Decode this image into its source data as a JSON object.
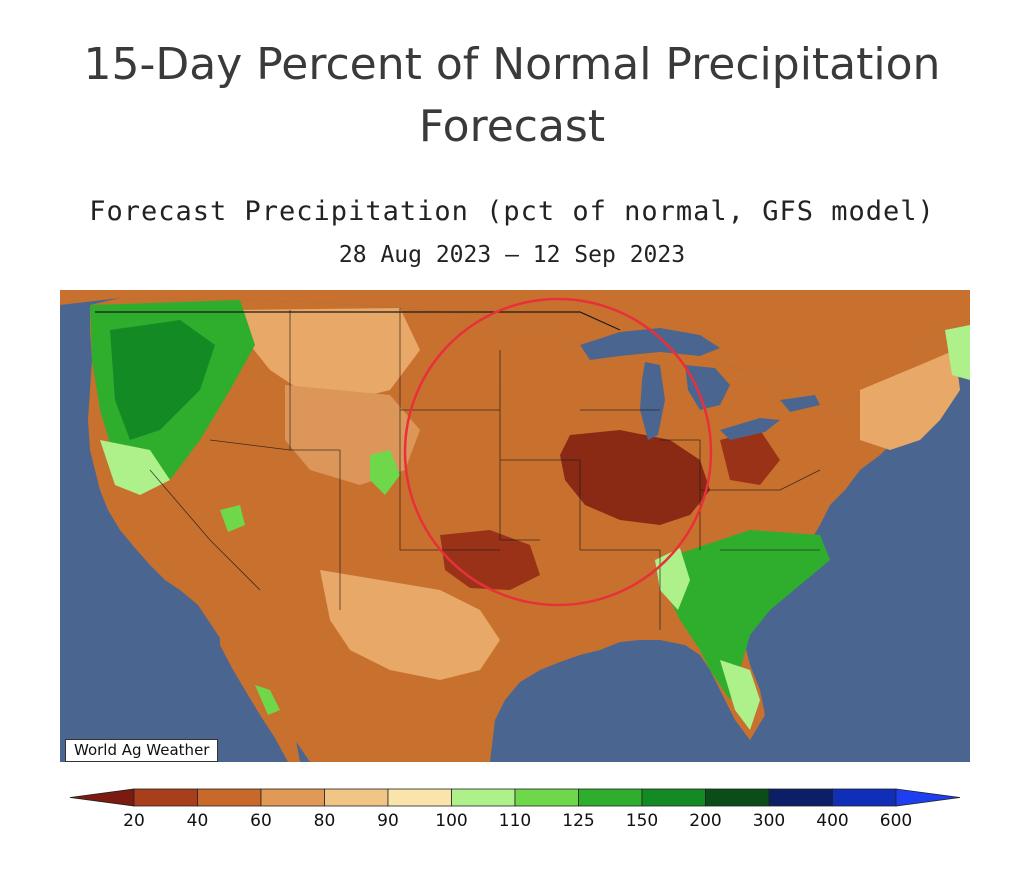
{
  "title": {
    "line1": "15-Day Percent of Normal Precipitation",
    "line2": "Forecast"
  },
  "map": {
    "subtitle": "Forecast Precipitation (pct of normal, GFS model)",
    "date_range": "28 Aug 2023 – 12 Sep 2023",
    "watermark": "World Ag Weather",
    "highlighted_region": "Central Corn Belt / Midwest",
    "colors": {
      "ocean": "#4a6690",
      "land_base": "#c8712f",
      "annotation_circle": "#e8303a"
    }
  },
  "legend": {
    "thresholds": [
      "20",
      "40",
      "60",
      "80",
      "90",
      "100",
      "110",
      "125",
      "150",
      "200",
      "300",
      "400",
      "600"
    ],
    "bins": [
      {
        "color": "#7a1a10"
      },
      {
        "color": "#a83e1a"
      },
      {
        "color": "#c8682b"
      },
      {
        "color": "#e19a55"
      },
      {
        "color": "#f0c585"
      },
      {
        "color": "#fae4ac"
      },
      {
        "color": "#aef08a"
      },
      {
        "color": "#6fd84a"
      },
      {
        "color": "#2fae2d"
      },
      {
        "color": "#138a24"
      },
      {
        "color": "#0a4d18"
      },
      {
        "color": "#0b1e66"
      },
      {
        "color": "#0f2fb8"
      },
      {
        "color": "#1d3ff0"
      }
    ]
  }
}
